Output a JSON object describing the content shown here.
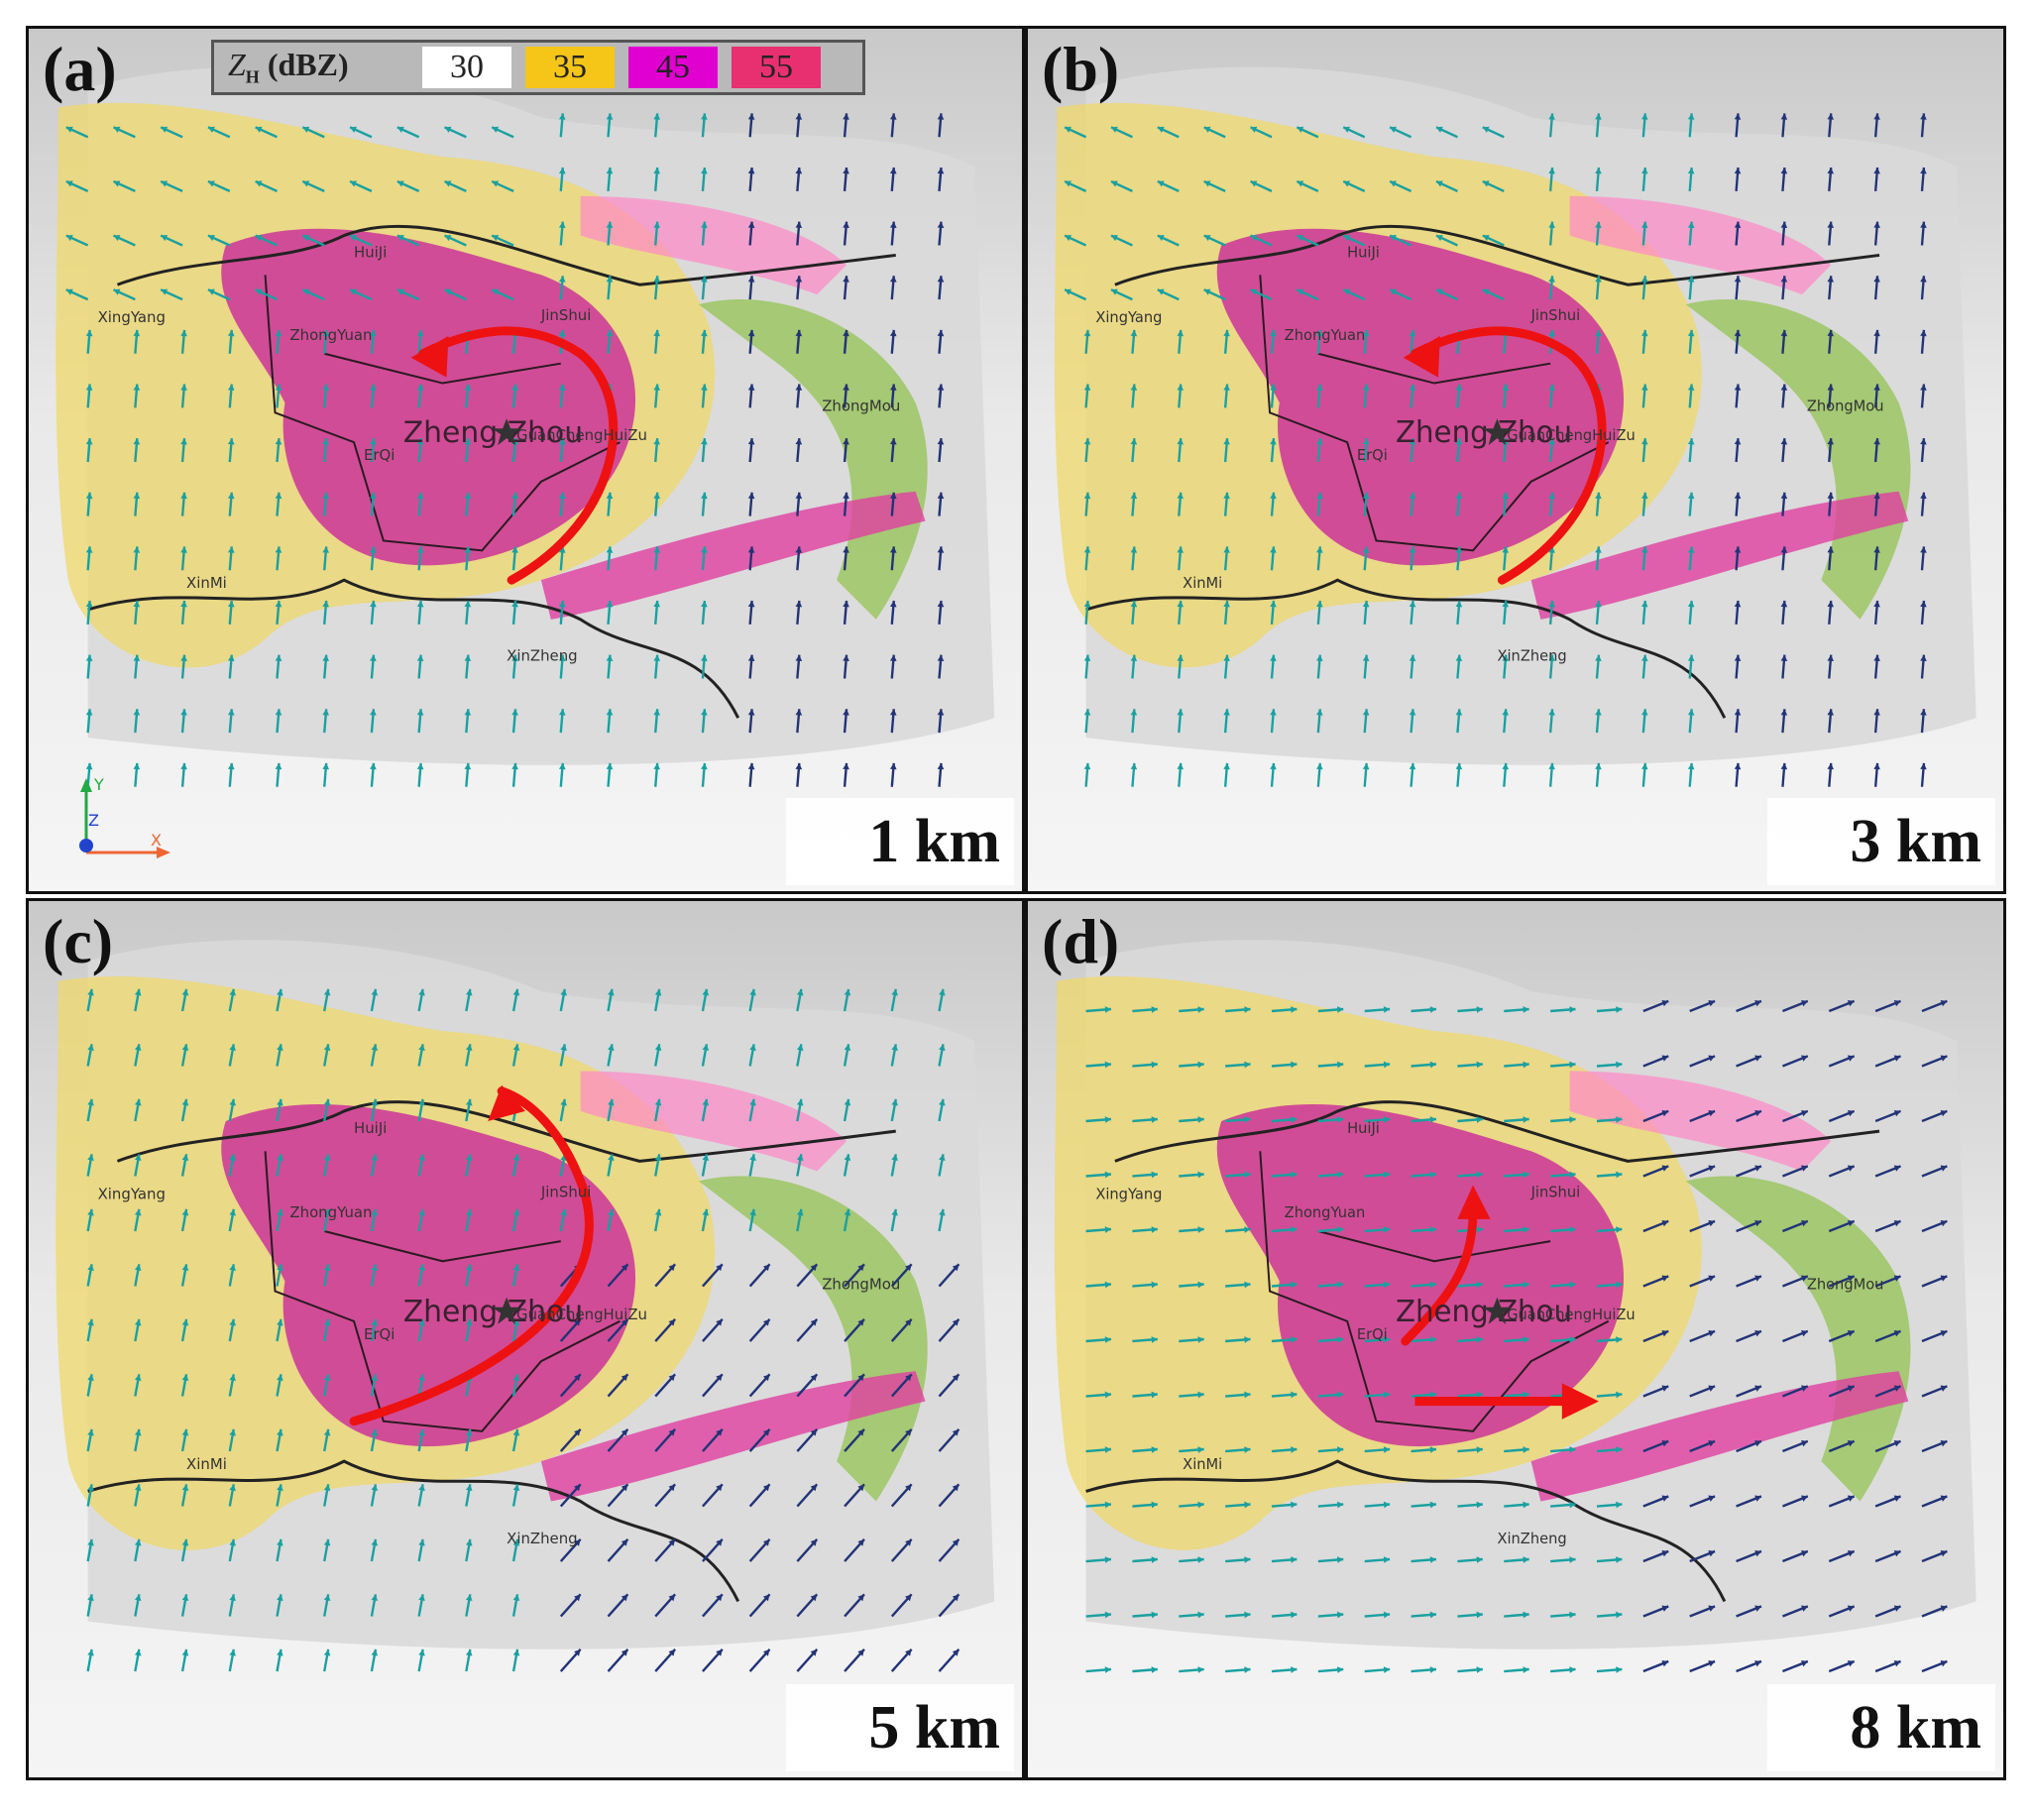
{
  "legend": {
    "title_var": "Z",
    "title_sub": "H",
    "title_unit": "(dBZ)",
    "items": [
      {
        "label": "30",
        "color": "#ffffff"
      },
      {
        "label": "35",
        "color": "#f5c518"
      },
      {
        "label": "45",
        "color": "#e000d0"
      },
      {
        "label": "55",
        "color": "#e83070"
      }
    ]
  },
  "panels": [
    {
      "label": "(a)",
      "height": "1 km"
    },
    {
      "label": "(b)",
      "height": "3 km"
    },
    {
      "label": "(c)",
      "height": "5 km"
    },
    {
      "label": "(d)",
      "height": "8 km"
    }
  ],
  "places": {
    "huiji": "HuiJi",
    "xingyang": "XingYang",
    "zhongyuan": "ZhongYuan",
    "jinshui": "JinShui",
    "zhengzhou": "Zheng Zhou",
    "erqi": "ErQi",
    "guancheng": "GuanChengHuiZu",
    "zhongmou": "ZhongMou",
    "xinmi": "XinMi",
    "xinzheng": "XinZheng"
  },
  "axes": {
    "x": "X",
    "y": "Y",
    "z": "Z"
  },
  "colors": {
    "arrow_red": "#ee1111",
    "vector_teal": "#1aa0a0",
    "vector_navy": "#223377",
    "yellow": "#efd86a",
    "magenta": "#cc3399"
  }
}
